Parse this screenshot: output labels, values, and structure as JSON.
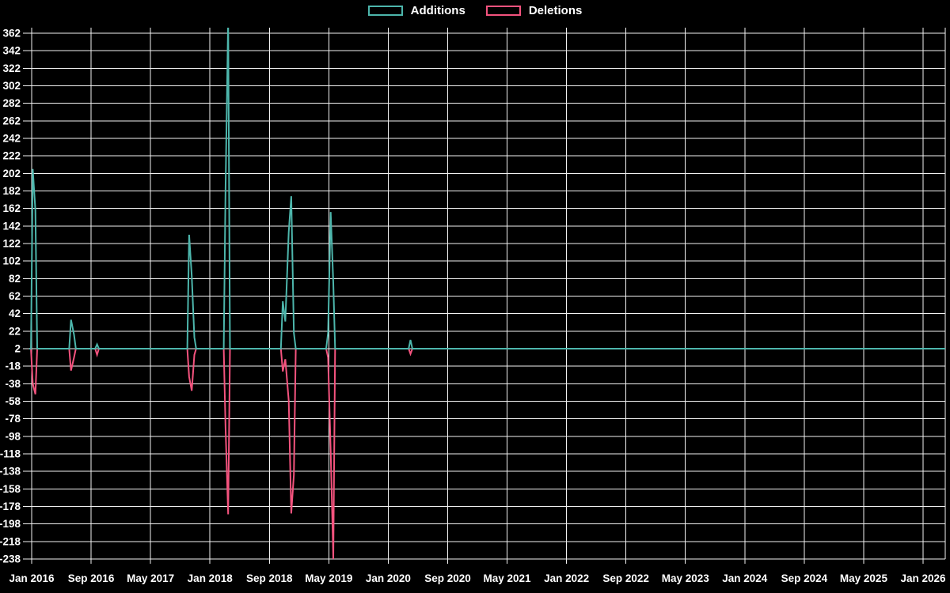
{
  "page": {
    "background_color": "#000000",
    "text_color": "#ffffff",
    "grid_color": "#f2f2f2"
  },
  "legend": {
    "position": "top-center",
    "items": [
      {
        "label": "Additions",
        "color": "#4db6ac"
      },
      {
        "label": "Deletions",
        "color": "#f4537e"
      }
    ]
  },
  "chart_data": {
    "type": "line",
    "subtype": "spike-timeseries (code frequency: additions above baseline, deletions below)",
    "title": "",
    "xlabel": "",
    "ylabel": "",
    "grid": true,
    "legend_position": "top-center",
    "background": "#000000",
    "x_axis": {
      "unit": "months since Jan 2016",
      "range_months": [
        0,
        123
      ],
      "tick_interval_months": 8,
      "tick_labels": [
        "Jan 2016",
        "Sep 2016",
        "May 2017",
        "Jan 2018",
        "Sep 2018",
        "May 2019",
        "Jan 2020",
        "Sep 2020",
        "May 2021",
        "Jan 2022",
        "Sep 2022",
        "May 2023",
        "Jan 2024",
        "Sep 2024",
        "May 2025",
        "Jan 2026"
      ]
    },
    "y_axis": {
      "min": -238,
      "max": 362,
      "step": 20,
      "baseline_value": 2,
      "tick_labels": [
        "362",
        "342",
        "322",
        "302",
        "282",
        "262",
        "242",
        "222",
        "202",
        "182",
        "162",
        "142",
        "122",
        "102",
        "82",
        "62",
        "42",
        "22",
        "2",
        "-18",
        "-38",
        "-58",
        "-78",
        "-98",
        "-118",
        "-138",
        "-158",
        "-178",
        "-198",
        "-218",
        "-238"
      ]
    },
    "points_columns": [
      "months_since_jan_2016",
      "additions",
      "deletions"
    ],
    "points": [
      [
        0.15,
        207,
        -38
      ],
      [
        0.5,
        160,
        -50
      ],
      [
        5.3,
        35,
        -23
      ],
      [
        5.7,
        18,
        -8
      ],
      [
        8.8,
        7,
        -5
      ],
      [
        21.2,
        132,
        -30
      ],
      [
        21.55,
        85,
        -46
      ],
      [
        21.9,
        15,
        -5
      ],
      [
        26.1,
        185,
        -88
      ],
      [
        26.45,
        378,
        -187
      ],
      [
        33.8,
        56,
        -24
      ],
      [
        34.15,
        33,
        -10
      ],
      [
        34.6,
        135,
        -57
      ],
      [
        34.95,
        176,
        -186
      ],
      [
        35.3,
        20,
        -142
      ],
      [
        39.9,
        20,
        -8
      ],
      [
        40.25,
        158,
        -115
      ],
      [
        40.6,
        77,
        -238
      ],
      [
        51.0,
        12,
        -4
      ]
    ],
    "series": [
      {
        "name": "Additions",
        "color": "#4db6ac",
        "direction": "up"
      },
      {
        "name": "Deletions",
        "color": "#f4537e",
        "direction": "down"
      }
    ]
  }
}
